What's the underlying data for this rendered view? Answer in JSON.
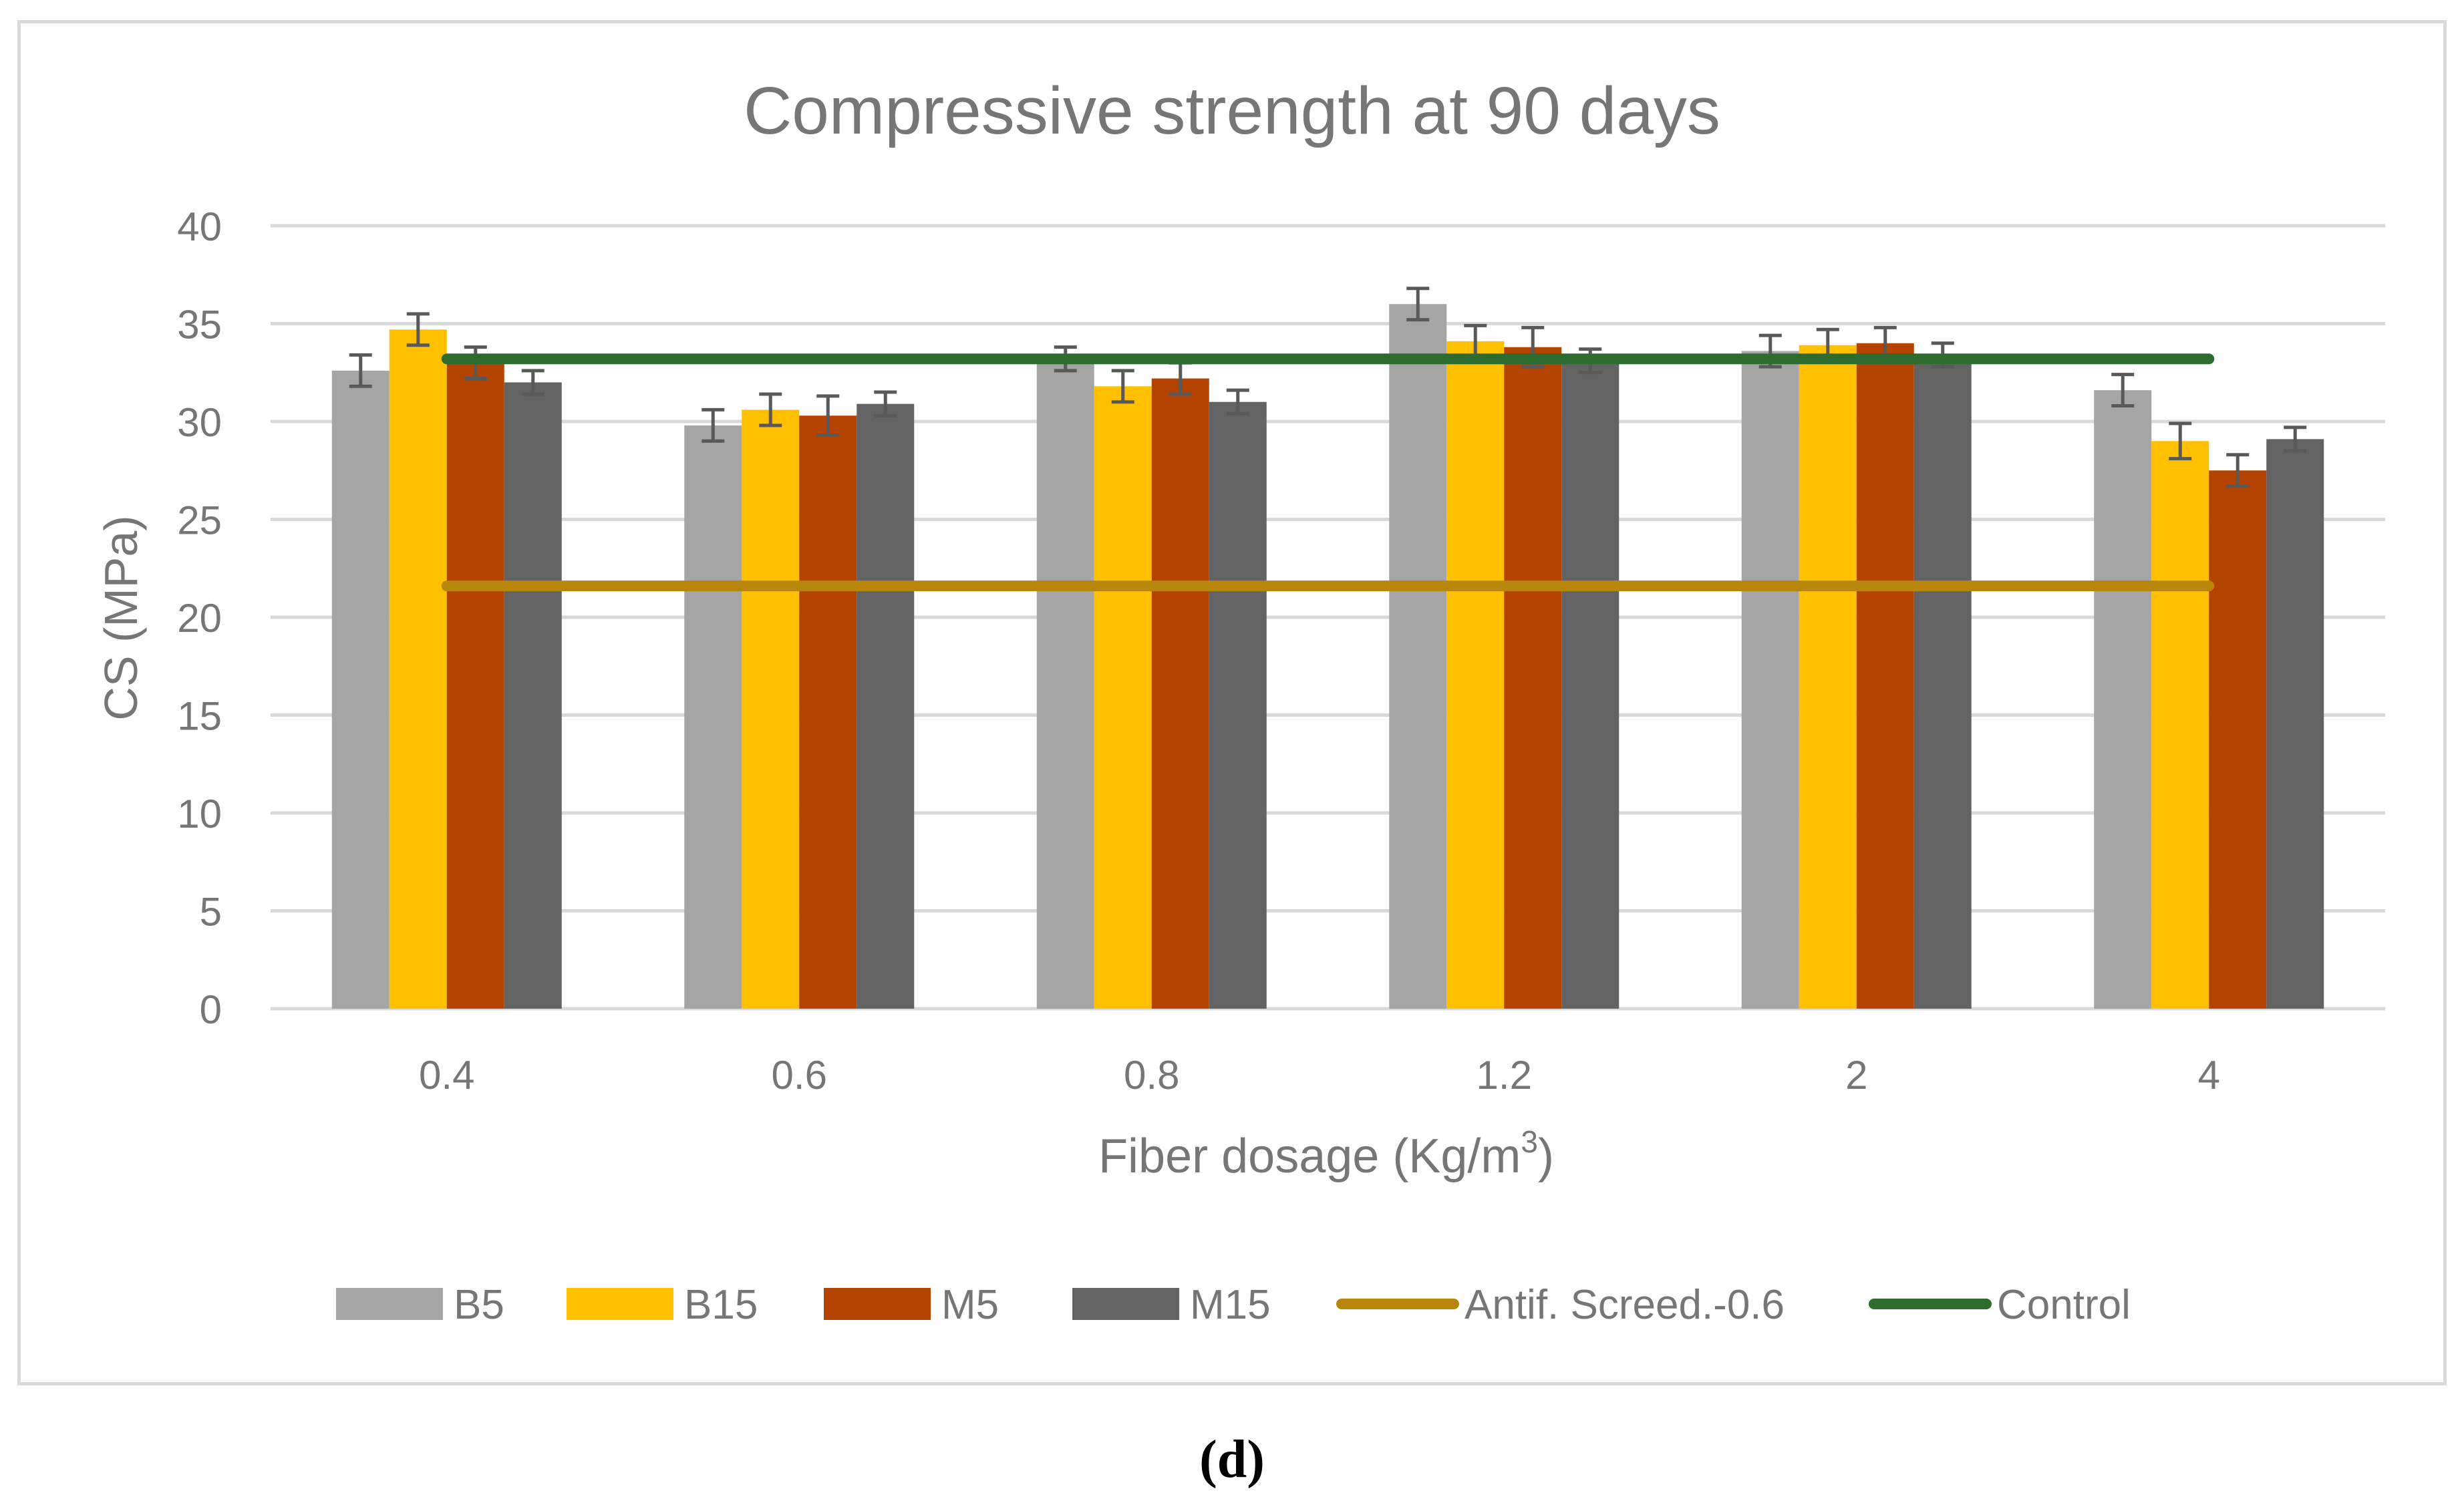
{
  "panel_label": "(d)",
  "colors": {
    "B5": "#a5a5a5",
    "B15": "#ffc000",
    "M5": "#b54300",
    "M15": "#636363",
    "Antif. Screed.-0.6": "#b8860b",
    "Control": "#2e6b2e",
    "error_bar": "#595959",
    "grid": "#d9d9d9",
    "text": "#767676"
  },
  "chart_data": {
    "type": "bar",
    "title": "Compressive strength at 90 days",
    "xlabel": "Fiber dosage (Kg/m",
    "xlabel_sup": "3",
    "xlabel_suffix": ")",
    "ylabel": "CS (MPa)",
    "ylim": [
      0,
      40
    ],
    "yticks": [
      "0",
      "5",
      "10",
      "15",
      "20",
      "25",
      "30",
      "35",
      "40"
    ],
    "grid": true,
    "legend_position": "bottom",
    "categories": [
      "0.4",
      "0.6",
      "0.8",
      "1.2",
      "2",
      "4"
    ],
    "series": [
      {
        "name": "B5",
        "values": [
          32.6,
          29.8,
          33.2,
          36.0,
          33.6,
          31.6
        ],
        "errors": [
          0.8,
          0.8,
          0.6,
          0.8,
          0.8,
          0.8
        ]
      },
      {
        "name": "B15",
        "values": [
          34.7,
          30.6,
          31.8,
          34.1,
          33.9,
          29.0
        ],
        "errors": [
          0.8,
          0.8,
          0.8,
          0.8,
          0.8,
          0.9
        ]
      },
      {
        "name": "M5",
        "values": [
          33.0,
          30.3,
          32.2,
          33.8,
          34.0,
          27.5
        ],
        "errors": [
          0.8,
          1.0,
          0.8,
          1.0,
          0.8,
          0.8
        ]
      },
      {
        "name": "M15",
        "values": [
          32.0,
          30.9,
          31.0,
          33.1,
          33.4,
          29.1
        ],
        "errors": [
          0.6,
          0.6,
          0.6,
          0.6,
          0.6,
          0.6
        ]
      }
    ],
    "lines": [
      {
        "name": "Antif. Screed.-0.6",
        "value": 21.6
      },
      {
        "name": "Control",
        "value": 33.2
      }
    ]
  }
}
